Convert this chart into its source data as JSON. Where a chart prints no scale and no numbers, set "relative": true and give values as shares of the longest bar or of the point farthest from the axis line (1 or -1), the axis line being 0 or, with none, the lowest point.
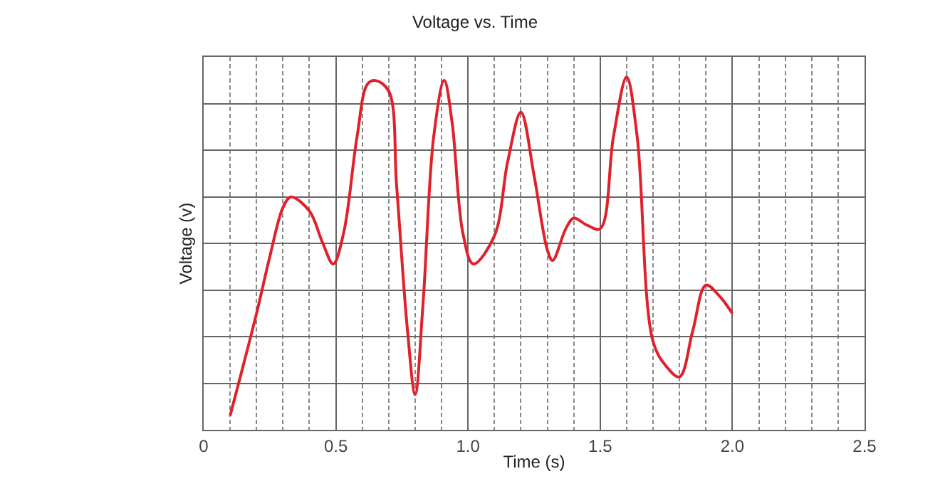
{
  "chart_data": {
    "type": "line",
    "title": "Voltage vs. Time",
    "xlabel": "Time (s)",
    "ylabel": "Voltage (v)",
    "relative": true,
    "x": [
      0.1,
      0.2,
      0.25,
      0.3,
      0.33,
      0.4,
      0.45,
      0.49,
      0.53,
      0.58,
      0.62,
      0.65,
      0.7,
      0.73,
      0.77,
      0.8,
      0.83,
      0.87,
      0.91,
      0.94,
      0.98,
      1.02,
      1.1,
      1.15,
      1.2,
      1.25,
      1.3,
      1.32,
      1.37,
      1.4,
      1.45,
      1.5,
      1.55,
      1.6,
      1.64,
      1.7,
      1.75,
      1.8,
      1.85,
      1.9,
      1.95,
      2.0
    ],
    "series": [
      {
        "color": "#e0202a",
        "values": [
          0.04,
          0.33,
          0.49,
          0.63,
          0.66,
          0.62,
          0.53,
          0.47,
          0.56,
          0.83,
          0.98,
          0.99,
          0.96,
          0.69,
          0.29,
          0.1,
          0.36,
          0.83,
          0.99,
          0.87,
          0.56,
          0.47,
          0.55,
          0.76,
          0.9,
          0.72,
          0.51,
          0.48,
          0.57,
          0.6,
          0.58,
          0.57,
          0.83,
          1.0,
          0.83,
          0.25,
          0.18,
          0.15,
          0.28,
          0.41,
          0.38,
          0.33
        ]
      }
    ],
    "xlim": [
      0,
      2.5
    ],
    "xticks": [
      0,
      {
        "value": 0.5,
        "label": "0.5"
      },
      {
        "value": 1.0,
        "label": "1.0"
      },
      {
        "value": 1.5,
        "label": "1.5"
      },
      {
        "value": 2.0,
        "label": "2.0"
      },
      {
        "value": 2.5,
        "label": "2.5"
      }
    ],
    "grid": true,
    "marker": "none",
    "line_style": "solid"
  }
}
